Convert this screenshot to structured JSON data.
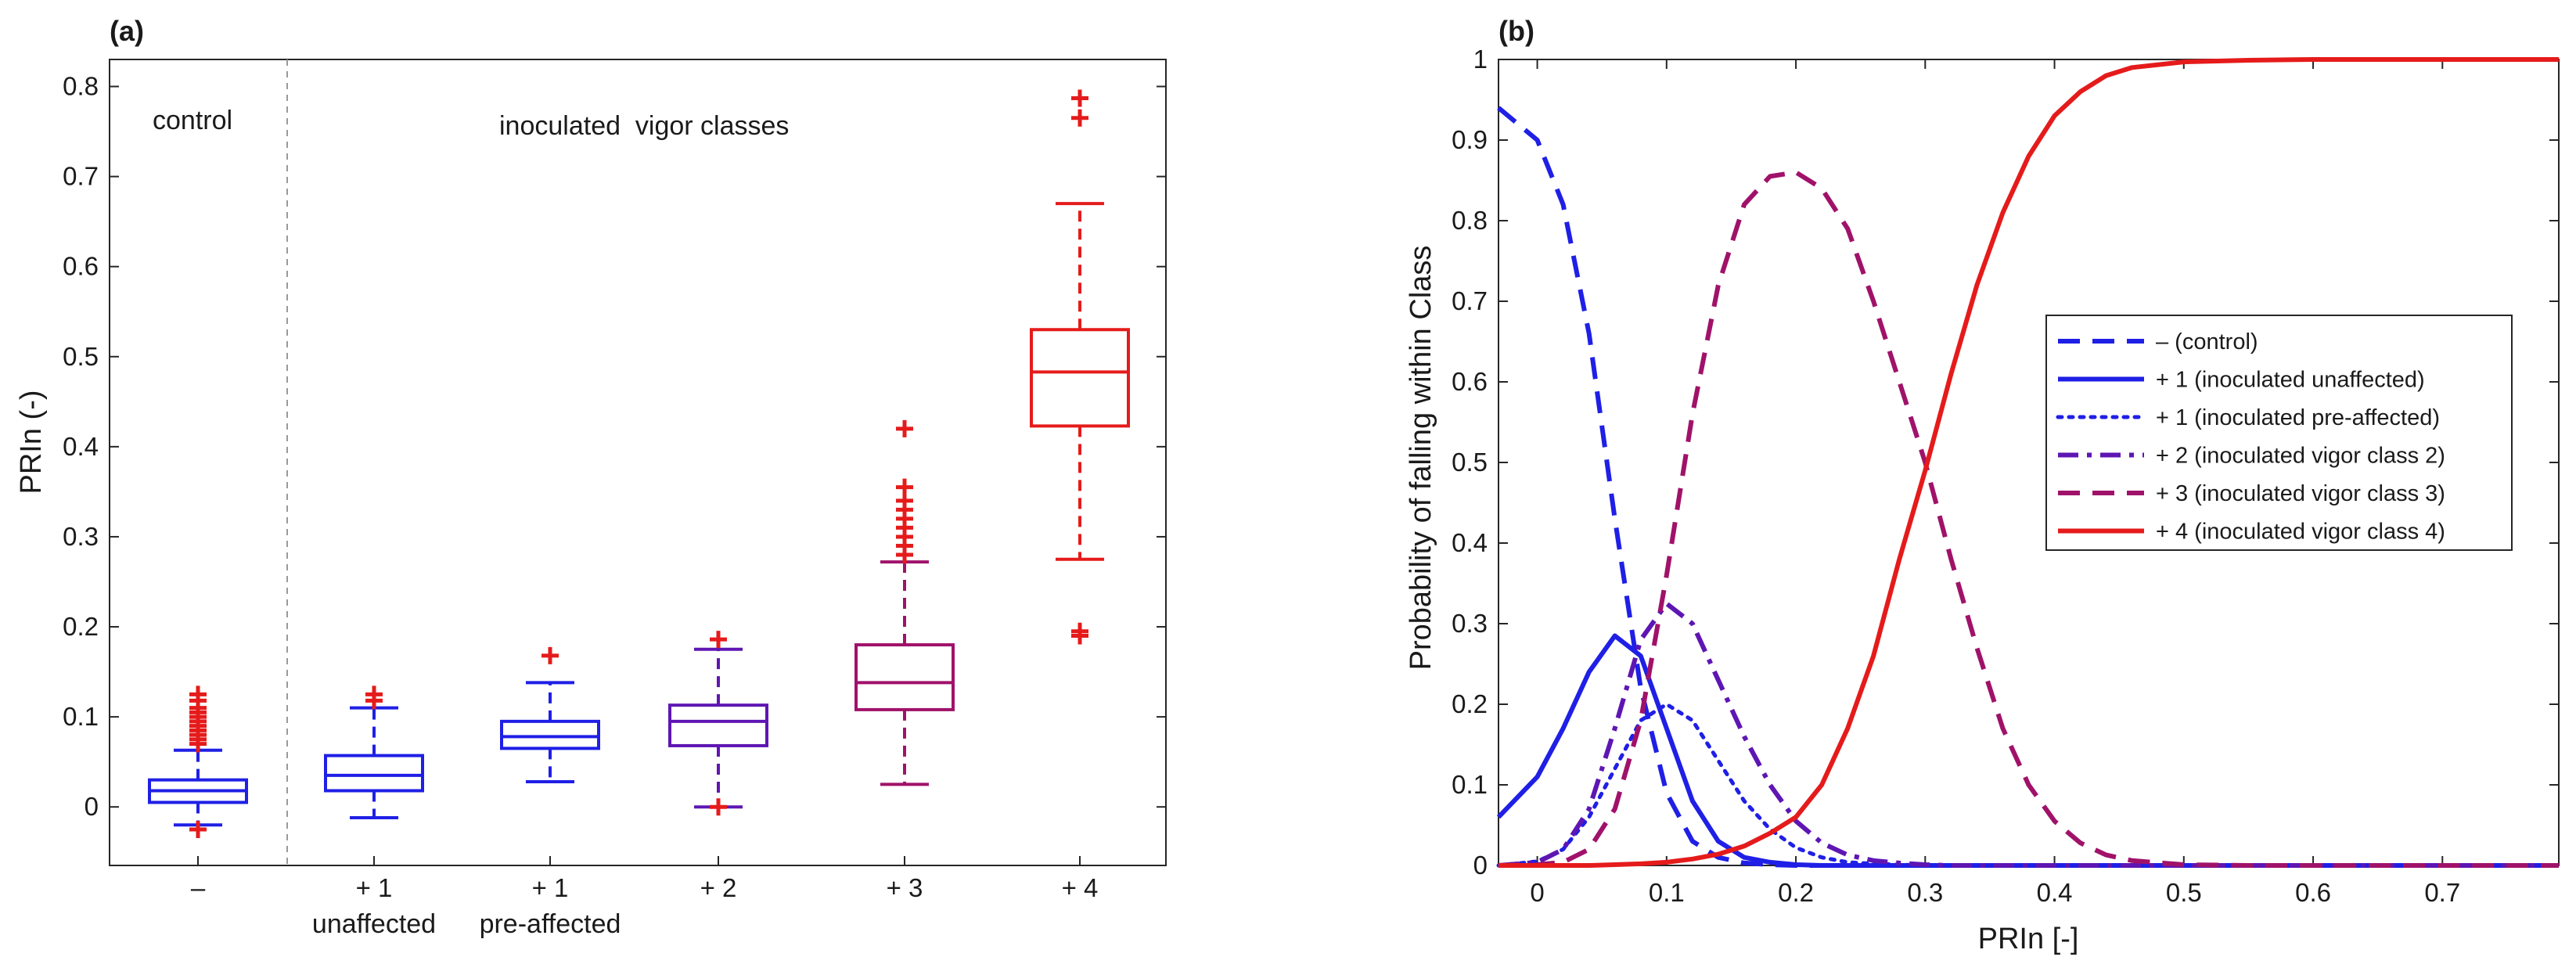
{
  "chart_data": [
    {
      "panel": "(a)",
      "type": "box",
      "ylabel": "PRIn (-)",
      "ylim": [
        -0.065,
        0.83
      ],
      "yticks": [
        "0",
        "0.1",
        "0.2",
        "0.3",
        "0.4",
        "0.5",
        "0.6",
        "0.7",
        "0.8"
      ],
      "annotations": {
        "control": "control",
        "inoculated": "inoculated  vigor classes"
      },
      "boxes": [
        {
          "tick": "–",
          "sublabel": "",
          "color": "#1f1fe6",
          "whisker_low": -0.02,
          "q1": 0.005,
          "median": 0.018,
          "q3": 0.03,
          "whisker_high": 0.063,
          "outliers": [
            0.07,
            0.075,
            0.08,
            0.085,
            0.09,
            0.095,
            0.1,
            0.105,
            0.11,
            0.118,
            0.125,
            -0.025
          ]
        },
        {
          "tick": "+ 1",
          "sublabel": "unaffected",
          "color": "#1f1fe6",
          "whisker_low": -0.012,
          "q1": 0.018,
          "median": 0.035,
          "q3": 0.057,
          "whisker_high": 0.11,
          "outliers": [
            0.118,
            0.125
          ]
        },
        {
          "tick": "+ 1",
          "sublabel": "pre-affected",
          "color": "#1f1fe6",
          "whisker_low": 0.028,
          "q1": 0.065,
          "median": 0.078,
          "q3": 0.095,
          "whisker_high": 0.138,
          "outliers": [
            0.168
          ]
        },
        {
          "tick": "+ 2",
          "sublabel": "",
          "color": "#5e16b3",
          "whisker_low": 0.0,
          "q1": 0.068,
          "median": 0.095,
          "q3": 0.113,
          "whisker_high": 0.175,
          "outliers": [
            0.186,
            0.0
          ]
        },
        {
          "tick": "+ 3",
          "sublabel": "",
          "color": "#a0126a",
          "whisker_low": 0.025,
          "q1": 0.108,
          "median": 0.138,
          "q3": 0.18,
          "whisker_high": 0.272,
          "outliers": [
            0.28,
            0.29,
            0.3,
            0.31,
            0.32,
            0.33,
            0.34,
            0.355,
            0.42
          ]
        },
        {
          "tick": "+ 4",
          "sublabel": "",
          "color": "#e51b1b",
          "whisker_low": 0.275,
          "q1": 0.423,
          "median": 0.483,
          "q3": 0.53,
          "whisker_high": 0.67,
          "outliers": [
            0.19,
            0.195,
            0.765,
            0.787
          ]
        }
      ]
    },
    {
      "panel": "(b)",
      "type": "line",
      "xlabel": "PRIn [-]",
      "ylabel": "Probability of falling within Class",
      "xlim": [
        -0.03,
        0.79
      ],
      "ylim": [
        0,
        1
      ],
      "xticks": [
        "0",
        "0.1",
        "0.2",
        "0.3",
        "0.4",
        "0.5",
        "0.6",
        "0.7"
      ],
      "yticks": [
        "0",
        "0.1",
        "0.2",
        "0.3",
        "0.4",
        "0.5",
        "0.6",
        "0.7",
        "0.8",
        "0.9",
        "1"
      ],
      "x": [
        -0.03,
        0.0,
        0.02,
        0.04,
        0.06,
        0.08,
        0.1,
        0.12,
        0.14,
        0.16,
        0.18,
        0.2,
        0.22,
        0.24,
        0.26,
        0.28,
        0.3,
        0.32,
        0.34,
        0.36,
        0.38,
        0.4,
        0.42,
        0.44,
        0.46,
        0.5,
        0.55,
        0.6,
        0.7,
        0.79
      ],
      "series": [
        {
          "name": "–    (control)",
          "color": "#1f1fe6",
          "dash": "dash",
          "width": 6,
          "values": [
            0.94,
            0.9,
            0.82,
            0.66,
            0.43,
            0.22,
            0.09,
            0.03,
            0.01,
            0.003,
            0.001,
            0,
            0,
            0,
            0,
            0,
            0,
            0,
            0,
            0,
            0,
            0,
            0,
            0,
            0,
            0,
            0,
            0,
            0,
            0
          ]
        },
        {
          "name": "+ 1 (inoculated unaffected)",
          "color": "#1f1fe6",
          "dash": "solid",
          "width": 6,
          "values": [
            0.06,
            0.11,
            0.17,
            0.24,
            0.285,
            0.26,
            0.17,
            0.08,
            0.03,
            0.01,
            0.004,
            0.001,
            0,
            0,
            0,
            0,
            0,
            0,
            0,
            0,
            0,
            0,
            0,
            0,
            0,
            0,
            0,
            0,
            0,
            0
          ]
        },
        {
          "name": "+ 1 (inoculated pre-affected)",
          "color": "#1f1fe6",
          "dash": "dot",
          "width": 5,
          "values": [
            0.0,
            0.005,
            0.02,
            0.06,
            0.12,
            0.18,
            0.2,
            0.18,
            0.13,
            0.08,
            0.045,
            0.022,
            0.01,
            0.004,
            0.002,
            0.001,
            0,
            0,
            0,
            0,
            0,
            0,
            0,
            0,
            0,
            0,
            0,
            0,
            0,
            0
          ]
        },
        {
          "name": "+ 2 (inoculated vigor class 2)",
          "color": "#5e16b3",
          "dash": "dashdot",
          "width": 6,
          "values": [
            0.0,
            0.004,
            0.02,
            0.07,
            0.17,
            0.28,
            0.325,
            0.3,
            0.23,
            0.16,
            0.1,
            0.055,
            0.028,
            0.013,
            0.006,
            0.003,
            0.001,
            0,
            0,
            0,
            0,
            0,
            0,
            0,
            0,
            0,
            0,
            0,
            0,
            0
          ]
        },
        {
          "name": "+ 3 (inoculated vigor class 3)",
          "color": "#a0126a",
          "dash": "dash",
          "width": 6,
          "values": [
            0.0,
            0.001,
            0.004,
            0.02,
            0.07,
            0.18,
            0.36,
            0.56,
            0.72,
            0.82,
            0.855,
            0.86,
            0.84,
            0.79,
            0.7,
            0.6,
            0.5,
            0.38,
            0.27,
            0.17,
            0.1,
            0.055,
            0.028,
            0.013,
            0.006,
            0.001,
            0,
            0,
            0,
            0
          ]
        },
        {
          "name": "+ 4 (inoculated vigor class 4)",
          "color": "#e51b1b",
          "dash": "solid",
          "width": 6,
          "values": [
            0.0,
            0.0,
            0.0,
            0.0,
            0.001,
            0.002,
            0.004,
            0.008,
            0.014,
            0.024,
            0.04,
            0.06,
            0.1,
            0.17,
            0.26,
            0.38,
            0.49,
            0.61,
            0.72,
            0.81,
            0.88,
            0.93,
            0.96,
            0.98,
            0.99,
            0.997,
            0.999,
            1.0,
            1.0,
            1.0
          ]
        }
      ]
    }
  ]
}
